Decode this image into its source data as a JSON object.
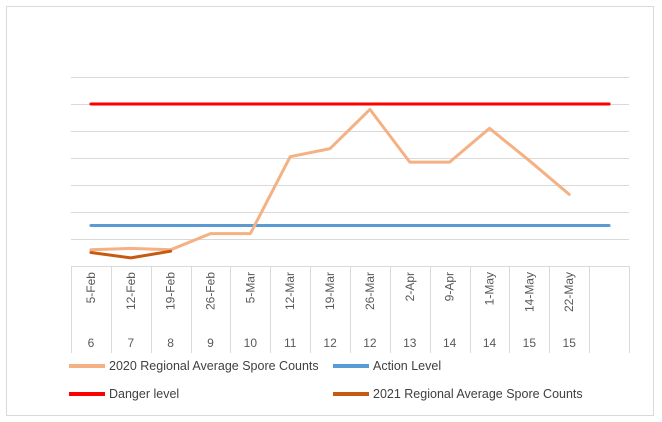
{
  "chart_data": {
    "type": "line",
    "title": "",
    "xlabel": "",
    "ylabel": "",
    "grid": true,
    "legend_position": "bottom",
    "y_tick_labels_shown": false,
    "ylim": [
      0,
      7
    ],
    "categories": [
      "5-Feb",
      "12-Feb",
      "19-Feb",
      "26-Feb",
      "5-Mar",
      "12-Mar",
      "19-Mar",
      "26-Mar",
      "2-Apr",
      "9-Apr",
      "1-May",
      "14-May",
      "22-May",
      ""
    ],
    "week_numbers": [
      "6",
      "7",
      "8",
      "9",
      "10",
      "11",
      "12",
      "12",
      "13",
      "14",
      "14",
      "15",
      "15",
      ""
    ],
    "series": [
      {
        "name": "2020 Regional Average Spore Counts",
        "color": "#F4B183",
        "values": [
          0.6,
          0.65,
          0.6,
          1.2,
          1.2,
          4.05,
          4.35,
          5.8,
          3.85,
          3.85,
          5.1,
          3.9,
          2.65,
          null
        ]
      },
      {
        "name": "Action Level",
        "color": "#5B9BD5",
        "values": [
          1.5,
          1.5,
          1.5,
          1.5,
          1.5,
          1.5,
          1.5,
          1.5,
          1.5,
          1.5,
          1.5,
          1.5,
          1.5,
          1.5
        ]
      },
      {
        "name": "Danger level",
        "color": "#FF0000",
        "values": [
          6,
          6,
          6,
          6,
          6,
          6,
          6,
          6,
          6,
          6,
          6,
          6,
          6,
          6
        ]
      },
      {
        "name": "2021 Regional Average Spore Counts",
        "color": "#C55A11",
        "values": [
          0.5,
          0.3,
          0.55,
          null,
          null,
          null,
          null,
          null,
          null,
          null,
          null,
          null,
          null,
          null
        ]
      }
    ]
  }
}
